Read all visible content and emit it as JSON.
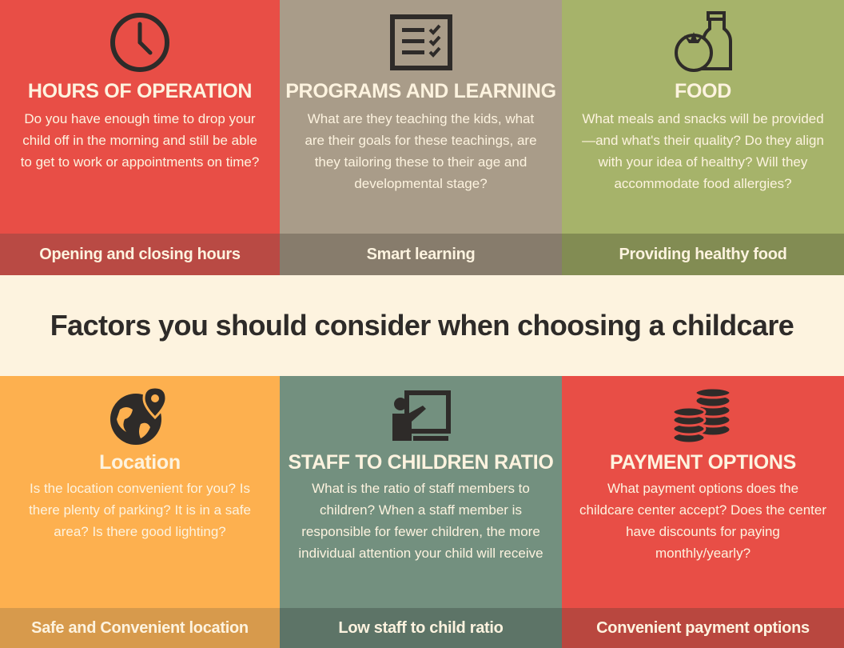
{
  "headline": "Factors you should consider when choosing a childcare",
  "colors": {
    "red": "#e84e46",
    "taupe": "#a99c89",
    "olive": "#a6b36a",
    "orange": "#fdb04f",
    "teal": "#73907f",
    "cream": "#fdf3df",
    "dark": "#2e2b29"
  },
  "cards": [
    {
      "icon": "clock-icon",
      "title": "HOURS OF OPERATION",
      "description": "Do you have enough time to drop your child off in the morning and still be able to get to work or appointments on time?",
      "footer": "Opening and closing hours"
    },
    {
      "icon": "checklist-icon",
      "title": "PROGRAMS AND LEARNING",
      "description": "What are they teaching the kids, what are their goals for these teachings, are they tailoring these to their age and developmental stage?",
      "footer": "Smart learning"
    },
    {
      "icon": "tomato-bottle-icon",
      "title": "FOOD",
      "description": "What meals and snacks will be provided—and what's their quality? Do they align with your idea of healthy? Will they accommodate food allergies?",
      "footer": "Providing healthy food"
    },
    {
      "icon": "globe-pin-icon",
      "title": "Location",
      "description": "Is the location convenient for you? Is there plenty of parking? It is in a safe area? Is there good lighting?",
      "footer": "Safe and Convenient location"
    },
    {
      "icon": "teacher-board-icon",
      "title": "STAFF TO CHILDREN RATIO",
      "description": "What is the ratio of staff members to children? When a staff member is responsible for fewer children, the more individual attention your child will receive",
      "footer": "Low staff to child ratio"
    },
    {
      "icon": "coin-stacks-icon",
      "title": "PAYMENT OPTIONS",
      "description": "What payment options does the childcare center accept? Does the center have discounts for paying monthly/yearly?",
      "footer": "Convenient payment options"
    }
  ]
}
